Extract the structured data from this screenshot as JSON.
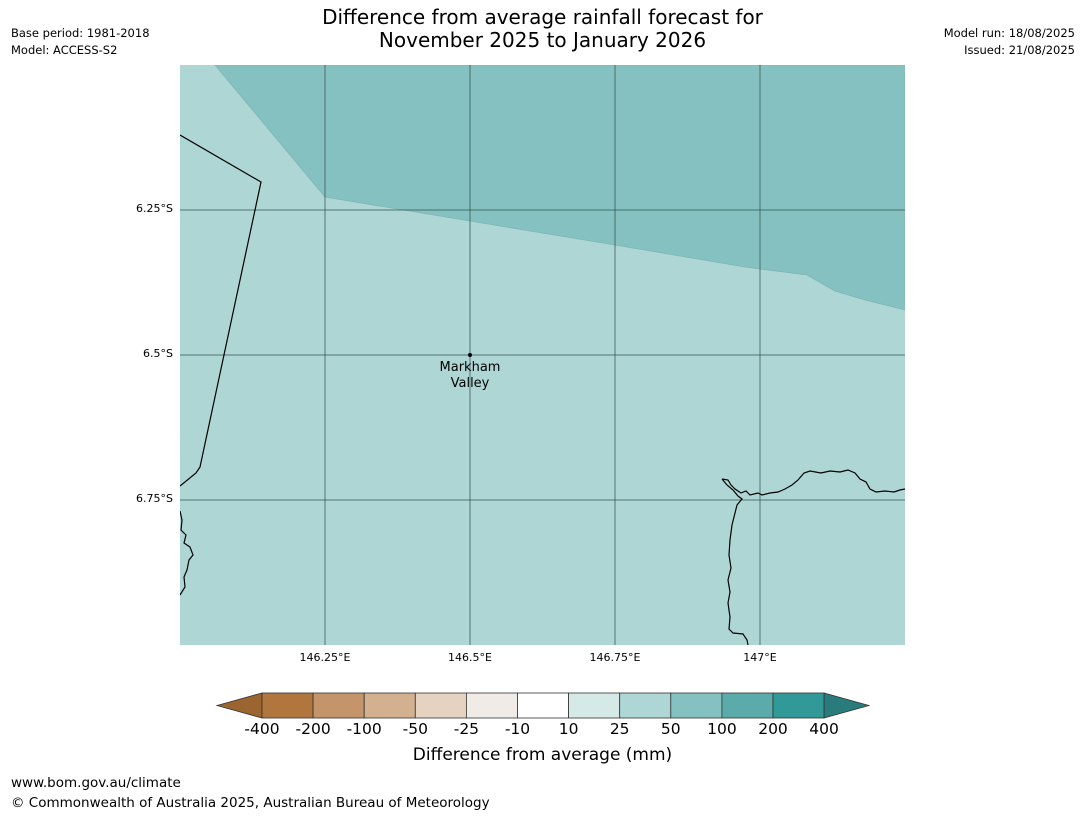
{
  "title": {
    "line1": "Difference from average rainfall forecast for",
    "line2": "November 2025 to January 2026"
  },
  "meta": {
    "base_period": "Base period: 1981-2018",
    "model": "Model: ACCESS-S2",
    "model_run": "Model run: 18/08/2025",
    "issued": "Issued: 21/08/2025"
  },
  "map": {
    "latitude_labels": [
      "6.25°S",
      "6.5°S",
      "6.75°S"
    ],
    "longitude_labels": [
      "146.25°E",
      "146.5°E",
      "146.75°E",
      "147°E"
    ],
    "place_name_line1": "Markham",
    "place_name_line2": "Valley",
    "region_categories": [
      "25 to 50",
      "50 to 100"
    ]
  },
  "colorbar": {
    "title": "Difference from average (mm)",
    "labels": [
      "-400",
      "-200",
      "-100",
      "-50",
      "-25",
      "-10",
      "10",
      "25",
      "50",
      "100",
      "200",
      "400"
    ],
    "colors": [
      "#9c6530",
      "#b0763e",
      "#c4946a",
      "#d3b08f",
      "#e5d2c0",
      "#f0ebe7",
      "#ffffff",
      "#d5e9e7",
      "#aed6d5",
      "#84c1c0",
      "#5aabaa",
      "#319a98",
      "#2a7b7b"
    ]
  },
  "footer": {
    "url": "www.bom.gov.au/climate",
    "copyright": "© Commonwealth of Australia 2025, Australian Bureau of Meteorology"
  }
}
